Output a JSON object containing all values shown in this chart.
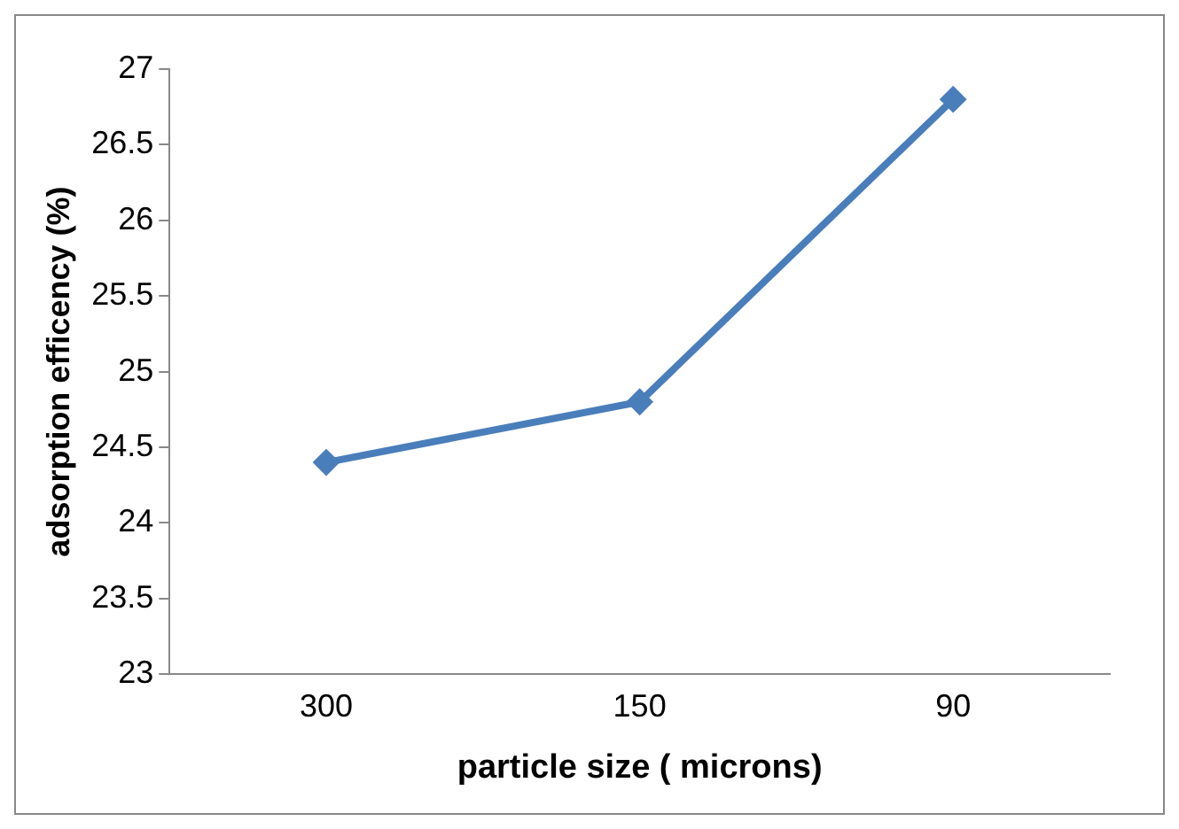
{
  "chart_data": {
    "type": "line",
    "xlabel": "particle size ( microns)",
    "ylabel": "adsorption efficency (%)",
    "categories": [
      "300",
      "150",
      "90"
    ],
    "series": [
      {
        "color": "#4a7ebb",
        "values": [
          24.4,
          24.8,
          26.8
        ]
      }
    ],
    "ylim": [
      23,
      27
    ],
    "yticks": [
      23,
      23.5,
      24,
      24.5,
      25,
      25.5,
      26,
      26.5,
      27
    ],
    "grid": false,
    "legend": false,
    "marker": "diamond",
    "line_style": "solid"
  }
}
